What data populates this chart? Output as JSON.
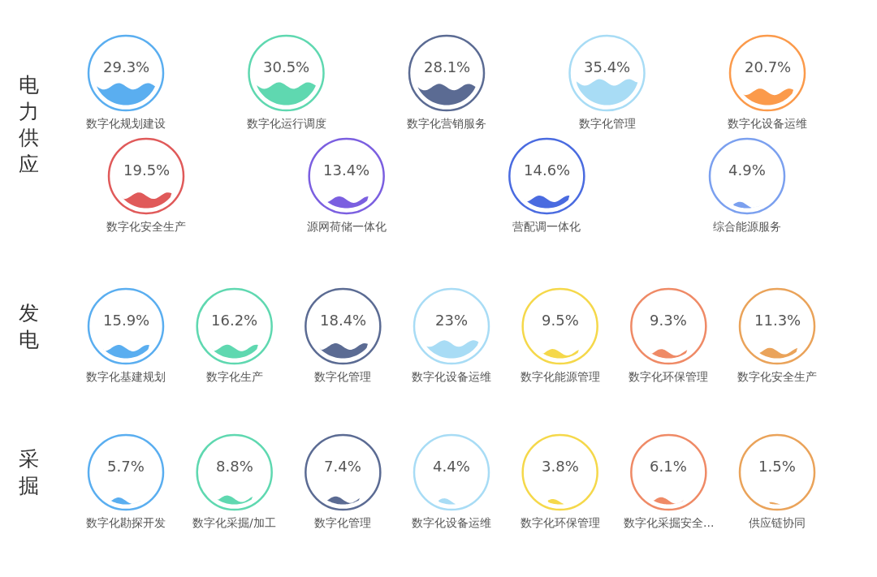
{
  "chart_data": [
    {
      "type": "other",
      "title": "电力供应",
      "categories": [
        "数字化规划建设",
        "数字化运行调度",
        "数字化营销服务",
        "数字化管理",
        "数字化设备运维",
        "数字化安全生产",
        "源网荷储一体化",
        "营配调一体化",
        "综合能源服务"
      ],
      "values": [
        29.3,
        30.5,
        28.1,
        35.4,
        20.7,
        19.5,
        13.4,
        14.6,
        4.9
      ],
      "value_labels": [
        "29.3%",
        "30.5%",
        "28.1%",
        "35.4%",
        "20.7%",
        "19.5%",
        "13.4%",
        "14.6%",
        "4.9%"
      ],
      "colors": [
        "#5aaef0",
        "#5fd8b0",
        "#5b6b93",
        "#a8dcf5",
        "#fb9a4b",
        "#e05a5a",
        "#7b5fe0",
        "#4a6be0",
        "#7ba0ef"
      ]
    },
    {
      "type": "other",
      "title": "发电",
      "categories": [
        "数字化基建规划",
        "数字化生产",
        "数字化管理",
        "数字化设备运维",
        "数字化能源管理",
        "数字化环保管理",
        "数字化安全生产"
      ],
      "values": [
        15.9,
        16.2,
        18.4,
        23,
        9.5,
        9.3,
        11.3
      ],
      "value_labels": [
        "15.9%",
        "16.2%",
        "18.4%",
        "23%",
        "9.5%",
        "9.3%",
        "11.3%"
      ],
      "colors": [
        "#5aaef0",
        "#5fd8b0",
        "#5b6b93",
        "#a8dcf5",
        "#f5d84a",
        "#ef8a66",
        "#eaa35a"
      ]
    },
    {
      "type": "other",
      "title": "采掘",
      "categories": [
        "数字化勘探开发",
        "数字化采掘/加工",
        "数字化管理",
        "数字化设备运维",
        "数字化环保管理",
        "数字化采掘安全...",
        "供应链协同"
      ],
      "values": [
        5.7,
        8.8,
        7.4,
        4.4,
        3.8,
        6.1,
        1.5
      ],
      "value_labels": [
        "5.7%",
        "8.8%",
        "7.4%",
        "4.4%",
        "3.8%",
        "6.1%",
        "1.5%"
      ],
      "colors": [
        "#5aaef0",
        "#5fd8b0",
        "#5b6b93",
        "#a8dcf5",
        "#f5d84a",
        "#ef8a66",
        "#eaa35a"
      ]
    }
  ]
}
